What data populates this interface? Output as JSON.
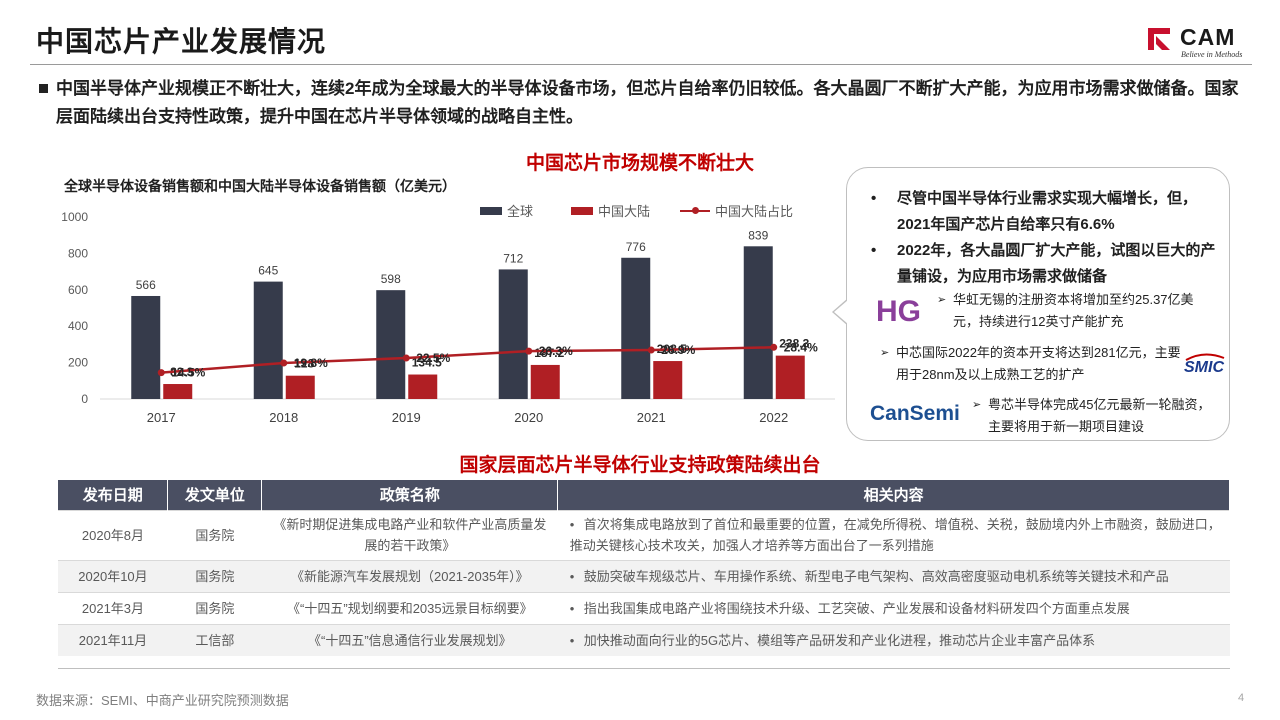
{
  "header": {
    "title": "中国芯片产业发展情况",
    "logo_word": "CAM",
    "logo_tagline": "Believe in Methods"
  },
  "intro": "中国半导体产业规模正不断壮大，连续2年成为全球最大的半导体设备市场，但芯片自给率仍旧较低。各大晶圆厂不断扩大产能，为应用市场需求做储备。国家层面陆续出台支持性政策，提升中国在芯片半导体领域的战略自主性。",
  "section1_title": "中国芯片市场规模不断壮大",
  "chart_subtitle": "全球半导体设备销售额和中国大陆半导体设备销售额（亿美元）",
  "colors": {
    "global": "#363b4b",
    "china": "#b01f24",
    "accent": "#c00000",
    "header_bg": "#4a4f62"
  },
  "chart_data": {
    "type": "bar",
    "categories": [
      "2017",
      "2018",
      "2019",
      "2020",
      "2021",
      "2022"
    ],
    "series": [
      {
        "name": "全球",
        "values": [
          566,
          645,
          598,
          712,
          776,
          839
        ],
        "labels": [
          "566",
          "645",
          "598",
          "712",
          "776",
          "839"
        ]
      },
      {
        "name": "中国大陆",
        "values": [
          82.3,
          128,
          134.5,
          187.2,
          208.5,
          238.3
        ],
        "labels": [
          "82.3",
          "128",
          "134.5",
          "187.2",
          "208.5",
          "238.3"
        ]
      }
    ],
    "line_series": {
      "name": "中国大陆占比",
      "values": [
        14.5,
        19.8,
        22.5,
        26.3,
        26.9,
        28.4
      ],
      "labels": [
        "14.5%",
        "19.8%",
        "22.5%",
        "26.3%",
        "26.9%",
        "28.4%"
      ]
    },
    "ylim": [
      0,
      1000
    ],
    "yticks": [
      "0",
      "200",
      "400",
      "600",
      "800",
      "1000"
    ],
    "grid": false,
    "legend": "top-right"
  },
  "bubble": {
    "points": [
      "尽管中国半导体行业需求实现大幅增长，但，2021年国产芯片自给率只有6.6%",
      "2022年，各大晶圆厂扩大产能，试图以巨大的产量铺设，为应用市场需求做储备"
    ],
    "items": [
      {
        "company": "HG",
        "text": "华虹无锡的注册资本将增加至约25.37亿美元，持续进行12英寸产能扩充"
      },
      {
        "company": "SMIC",
        "text": "中芯国际2022年的资本开支将达到281亿元，主要用于28nm及以上成熟工艺的扩产"
      },
      {
        "company": "CanSemi",
        "text": "粤芯半导体完成45亿元最新一轮融资，主要将用于新一期项目建设"
      }
    ]
  },
  "section2_title": "国家层面芯片半导体行业支持政策陆续出台",
  "table": {
    "headers": [
      "发布日期",
      "发文单位",
      "政策名称",
      "相关内容"
    ],
    "rows": [
      {
        "date": "2020年8月",
        "unit": "国务院",
        "name": "《新时期促进集成电路产业和软件产业高质量发展的若干政策》",
        "content": "首次将集成电路放到了首位和最重要的位置，在减免所得税、增值税、关税，鼓励境内外上市融资，鼓励进口，推动关键核心技术攻关，加强人才培养等方面出台了一系列措施"
      },
      {
        "date": "2020年10月",
        "unit": "国务院",
        "name": "《新能源汽车发展规划（2021-2035年）》",
        "content": "鼓励突破车规级芯片、车用操作系统、新型电子电气架构、高效高密度驱动电机系统等关键技术和产品"
      },
      {
        "date": "2021年3月",
        "unit": "国务院",
        "name": "《“十四五”规划纲要和2035远景目标纲要》",
        "content": "指出我国集成电路产业将围绕技术升级、工艺突破、产业发展和设备材料研发四个方面重点发展"
      },
      {
        "date": "2021年11月",
        "unit": "工信部",
        "name": "《“十四五”信息通信行业发展规划》",
        "content": "加快推动面向行业的5G芯片、模组等产品研发和产业化进程，推动芯片企业丰富产品体系"
      }
    ]
  },
  "footer": {
    "source": "数据来源：SEMI、中商产业研究院预测数据",
    "page": "4"
  }
}
